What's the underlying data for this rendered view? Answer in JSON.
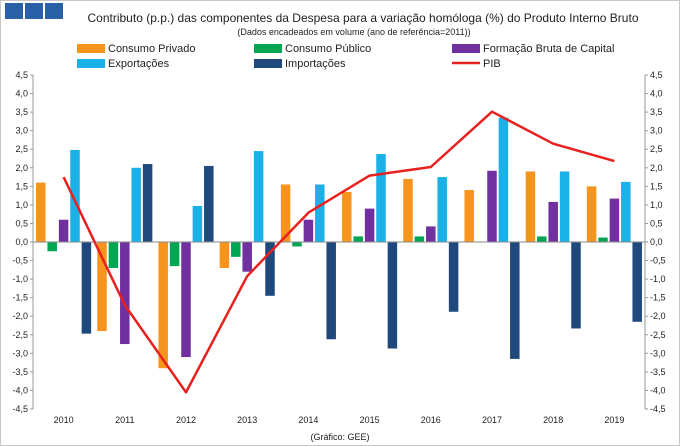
{
  "chart_data": {
    "type": "bar",
    "title": "Contributo (p.p.) das componentes da Despesa para a variação homóloga (%) do Produto Interno Bruto",
    "subtitle": "(Dados encadeados em volume (ano de referência=2011))",
    "source": "(Gráfico: GEE)",
    "categories": [
      "2010",
      "2011",
      "2012",
      "2013",
      "2014",
      "2015",
      "2016",
      "2017",
      "2018",
      "2019"
    ],
    "ylim": [
      -4.5,
      4.5
    ],
    "ytick_step": 0.5,
    "yticks": [
      "4,5",
      "4,0",
      "3,5",
      "3,0",
      "2,5",
      "2,0",
      "1,5",
      "1,0",
      "0,5",
      "0,0",
      "-0,5",
      "-1,0",
      "-1,5",
      "-2,0",
      "-2,5",
      "-3,0",
      "-3,5",
      "-4,0",
      "-4,5"
    ],
    "series": [
      {
        "name": "Consumo Privado",
        "type": "bar",
        "color": "#f7941d",
        "values": [
          1.6,
          -2.4,
          -3.4,
          -0.7,
          1.55,
          1.35,
          1.7,
          1.4,
          1.9,
          1.5
        ]
      },
      {
        "name": "Consumo Público",
        "type": "bar",
        "color": "#00a651",
        "values": [
          -0.25,
          -0.7,
          -0.65,
          -0.4,
          -0.12,
          0.15,
          0.15,
          0.0,
          0.15,
          0.12
        ]
      },
      {
        "name": "Formação Bruta de Capital",
        "type": "bar",
        "color": "#7030a0",
        "values": [
          0.6,
          -2.75,
          -3.1,
          -0.8,
          0.6,
          0.9,
          0.42,
          1.92,
          1.08,
          1.17
        ]
      },
      {
        "name": "Exportações",
        "type": "bar",
        "color": "#1ab0e8",
        "values": [
          2.48,
          2.0,
          0.97,
          2.45,
          1.55,
          2.37,
          1.75,
          3.35,
          1.9,
          1.62
        ]
      },
      {
        "name": "Importações",
        "type": "bar",
        "color": "#1f497d",
        "values": [
          -2.47,
          2.1,
          2.05,
          -1.45,
          -2.62,
          -2.87,
          -1.88,
          -3.15,
          -2.33,
          -2.15
        ]
      },
      {
        "name": "PIB",
        "type": "line",
        "color": "#e8211f",
        "values": [
          1.75,
          -1.7,
          -4.05,
          -0.92,
          0.79,
          1.79,
          2.02,
          3.51,
          2.65,
          2.18
        ]
      }
    ],
    "legend_position": "top",
    "grid": false
  }
}
